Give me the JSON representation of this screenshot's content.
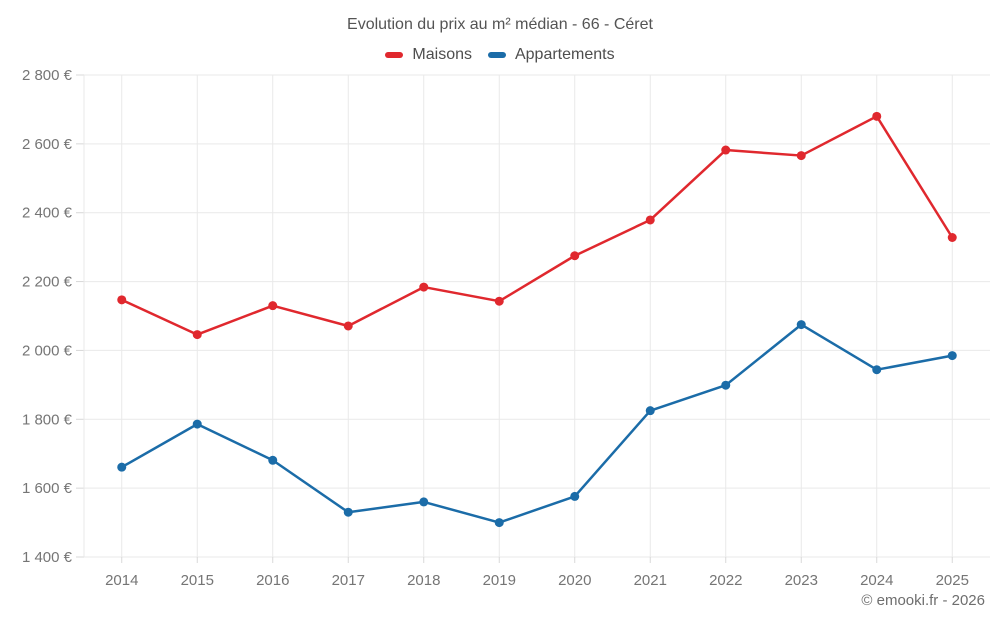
{
  "header": {
    "title": "Evolution du prix au m² médian - 66 - Céret"
  },
  "legend": [
    {
      "label": "Maisons",
      "color": "#e0282e"
    },
    {
      "label": "Appartements",
      "color": "#1b6ca8"
    }
  ],
  "footer": {
    "credit": "© emooki.fr - 2026"
  },
  "chart_data": {
    "type": "line",
    "title": "Evolution du prix au m² médian - 66 - Céret",
    "x": [
      "2014",
      "2015",
      "2016",
      "2017",
      "2018",
      "2019",
      "2020",
      "2021",
      "2022",
      "2023",
      "2024",
      "2025"
    ],
    "series": [
      {
        "name": "Maisons",
        "color": "#e0282e",
        "values": [
          2147,
          2046,
          2130,
          2071,
          2184,
          2143,
          2275,
          2379,
          2582,
          2566,
          2680,
          2328
        ]
      },
      {
        "name": "Appartements",
        "color": "#1b6ca8",
        "values": [
          1661,
          1786,
          1681,
          1530,
          1560,
          1500,
          1576,
          1825,
          1899,
          2075,
          1944,
          1985
        ]
      }
    ],
    "xlabel": "",
    "ylabel": "",
    "ylim": [
      1400,
      2800
    ],
    "y_ticks": [
      {
        "value": 1400,
        "label": "1 400 €"
      },
      {
        "value": 1600,
        "label": "1 600 €"
      },
      {
        "value": 1800,
        "label": "1 800 €"
      },
      {
        "value": 2000,
        "label": "2 000 €"
      },
      {
        "value": 2200,
        "label": "2 200 €"
      },
      {
        "value": 2400,
        "label": "2 400 €"
      },
      {
        "value": 2600,
        "label": "2 600 €"
      },
      {
        "value": 2800,
        "label": "2 800 €"
      }
    ],
    "grid": true,
    "legend_position": "top",
    "grid_color": "#e9e9e9",
    "tick_color": "#d8d8d8",
    "axis_text_color": "#757575"
  }
}
